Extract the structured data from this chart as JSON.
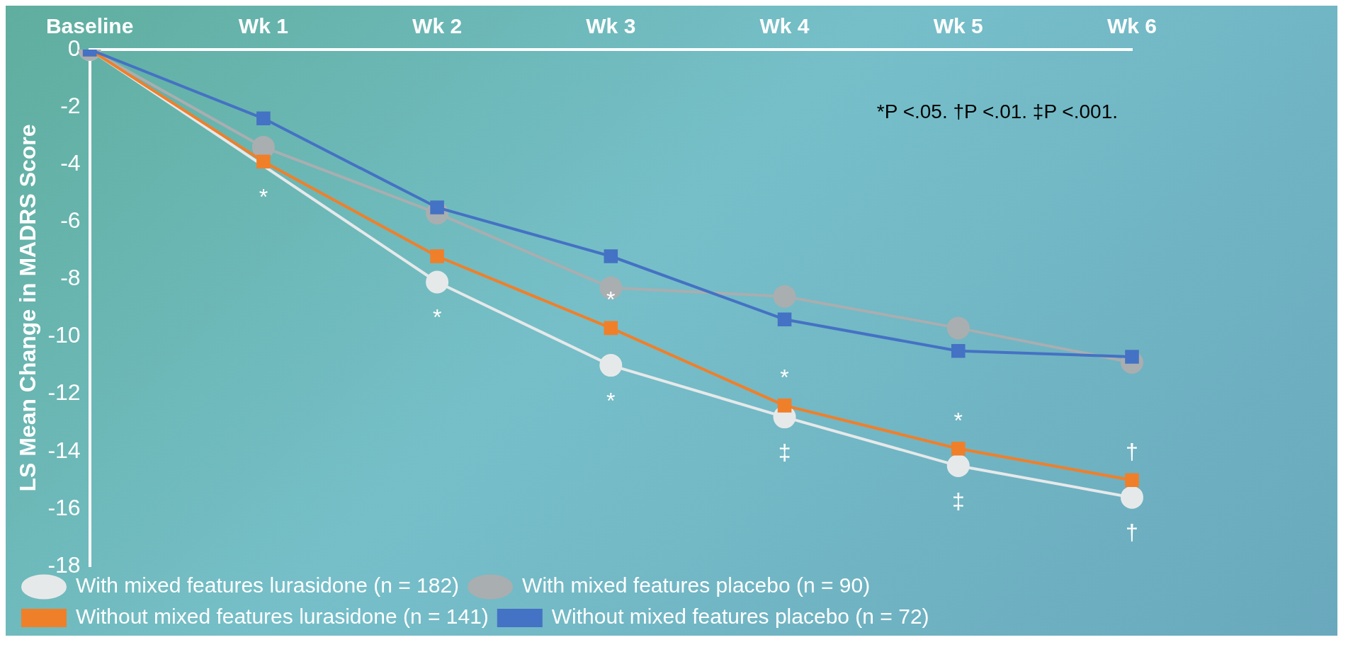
{
  "chart_data": {
    "type": "line",
    "ylabel": "LS Mean Change in MADRS Score",
    "categories": [
      "Baseline",
      "Wk 1",
      "Wk 2",
      "Wk 3",
      "Wk 4",
      "Wk 5",
      "Wk 6"
    ],
    "ylim": [
      -18,
      0
    ],
    "yticks": [
      0,
      -2,
      -4,
      -6,
      -8,
      -10,
      -12,
      -14,
      -16,
      -18
    ],
    "grid": false,
    "legend": "bottom",
    "series": [
      {
        "name": "With mixed features lurasidone (n = 182)",
        "color": "#e6e9ea",
        "marker": "circle",
        "values": [
          0,
          null,
          -8.1,
          -11.0,
          -12.8,
          -14.5,
          -15.6
        ]
      },
      {
        "name": "With mixed features placebo (n = 90)",
        "color": "#a9aeb0",
        "marker": "circle",
        "values": [
          0,
          -3.4,
          -5.7,
          -8.3,
          -8.6,
          -9.7,
          -10.9
        ]
      },
      {
        "name": "Without mixed features lurasidone (n = 141)",
        "color": "#f07f2a",
        "marker": "square",
        "values": [
          0,
          -3.9,
          -7.2,
          -9.7,
          -12.4,
          -13.9,
          -15.0
        ]
      },
      {
        "name": "Without mixed features placebo (n = 72)",
        "color": "#4472c4",
        "marker": "square",
        "values": [
          0,
          -2.4,
          -5.5,
          -7.2,
          -9.4,
          -10.5,
          -10.7
        ]
      }
    ],
    "annotations": [
      "*P <.05. †P <.01. ‡P <.001.",
      {
        "text": "*",
        "x": "Wk 1",
        "y": -3.9
      },
      {
        "text": "*",
        "x": "Wk 2",
        "y": -8.1
      },
      {
        "text": "*",
        "x": "Wk 3",
        "y": -9.7
      },
      {
        "text": "*",
        "x": "Wk 3",
        "y": -11.0
      },
      {
        "text": "*",
        "x": "Wk 4",
        "y": -12.4
      },
      {
        "text": "‡",
        "x": "Wk 4",
        "y": -12.8
      },
      {
        "text": "*",
        "x": "Wk 5",
        "y": -13.9
      },
      {
        "text": "‡",
        "x": "Wk 5",
        "y": -14.5
      },
      {
        "text": "†",
        "x": "Wk 6",
        "y": -15.0
      },
      {
        "text": "†",
        "x": "Wk 6",
        "y": -15.6
      }
    ]
  }
}
